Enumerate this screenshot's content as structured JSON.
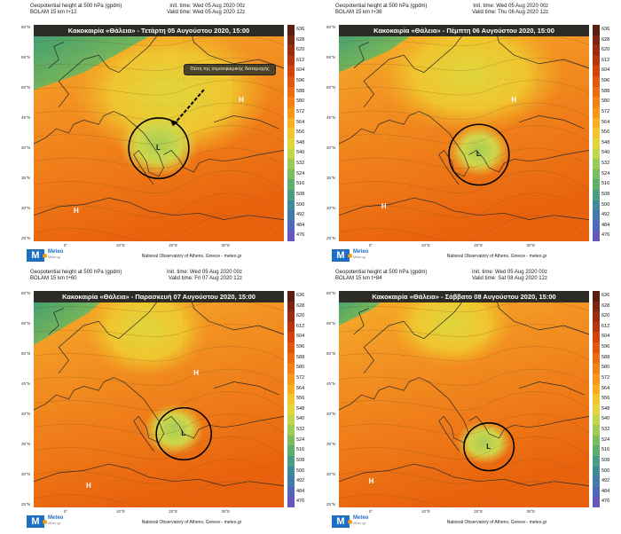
{
  "panels": [
    {
      "id": "p1",
      "header_left": [
        "Geopotential height at 500 hPa (gpdm)",
        "BOLAM 15 km t+12"
      ],
      "header_right": [
        "Init. time: Wed 05 Aug 2020 00z",
        "Valid time: Wed 05 Aug 2020 12z"
      ],
      "banner": "Κακοκαιρία «Θάλεια» - Τετάρτη 05 Αυγούστου 2020, 15:00",
      "callout": "Θέση της ατμοσφαιρικής διαταραχής",
      "credit": "National Observatory of Athens, Greece - meteo.gr",
      "pressure_centers": [
        {
          "kind": "high",
          "label": "H"
        },
        {
          "kind": "high",
          "label": "H"
        },
        {
          "kind": "low",
          "label": "L"
        }
      ]
    },
    {
      "id": "p2",
      "header_left": [
        "Geopotential height at 500 hPa (gpdm)",
        "BOLAM 15 km t+36"
      ],
      "header_right": [
        "Init. time: Wed 05 Aug 2020 00z",
        "Valid time: Thu 06 Aug 2020 12z"
      ],
      "banner": "Κακοκαιρία «Θάλεια» - Πέμπτη 06 Αυγούστου 2020, 15:00",
      "credit": "National Observatory of Athens, Greece - meteo.gr",
      "pressure_centers": [
        {
          "kind": "high",
          "label": "H"
        },
        {
          "kind": "high",
          "label": "H"
        },
        {
          "kind": "low",
          "label": "L"
        }
      ]
    },
    {
      "id": "p3",
      "header_left": [
        "Geopotential height at 500 hPa (gpdm)",
        "BOLAM 15 km t+60"
      ],
      "header_right": [
        "Init. time: Wed 05 Aug 2020 00z",
        "Valid time: Fri 07 Aug 2020 12z"
      ],
      "banner": "Κακοκαιρία «Θάλεια» - Παρασκευή 07 Αυγούστου 2020, 15:00",
      "credit": "National Observatory of Athens, Greece - meteo.gr",
      "pressure_centers": [
        {
          "kind": "high",
          "label": "H"
        },
        {
          "kind": "high",
          "label": "H"
        },
        {
          "kind": "low",
          "label": "L"
        }
      ]
    },
    {
      "id": "p4",
      "header_left": [
        "Geopotential height at 500 hPa (gpdm)",
        "BOLAM 15 km t+84"
      ],
      "header_right": [
        "Init. time: Wed 05 Aug 2020 00z",
        "Valid time: Sat 08 Aug 2020 12z"
      ],
      "banner": "Κακοκαιρία «Θάλεια» - Σάββατο 08 Αυγούστου 2020, 15:00",
      "credit": "National Observatory of Athens, Greece - meteo.gr",
      "pressure_centers": [
        {
          "kind": "high",
          "label": "H"
        },
        {
          "kind": "low",
          "label": "L"
        }
      ]
    }
  ],
  "colorbar": {
    "labels": [
      "636",
      "628",
      "620",
      "612",
      "604",
      "596",
      "588",
      "580",
      "572",
      "564",
      "556",
      "548",
      "540",
      "532",
      "524",
      "516",
      "508",
      "500",
      "492",
      "484",
      "476"
    ],
    "colors": [
      "#5a1e12",
      "#7a2612",
      "#9a2d10",
      "#b8360e",
      "#d4430c",
      "#e2560e",
      "#ec6a10",
      "#f38014",
      "#f7961a",
      "#f7ae22",
      "#f3c530",
      "#e3d53c",
      "#c3d64a",
      "#9ecb55",
      "#7cbd62",
      "#5eae6e",
      "#4a9c82",
      "#3f8a96",
      "#4579aa",
      "#5367b8",
      "#6459bb"
    ]
  },
  "lat_ticks": [
    "60°N",
    "55°N",
    "50°N",
    "45°N",
    "40°N",
    "35°N",
    "30°N",
    "25°N"
  ],
  "lon_ticks": [
    "0°",
    "10°E",
    "20°E",
    "30°E"
  ],
  "logo": {
    "name": "Meteo",
    "sub": "Μέτεο γρ"
  }
}
